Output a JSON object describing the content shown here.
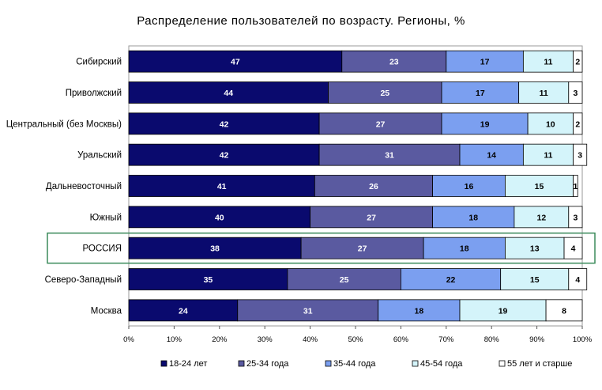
{
  "chart_data": {
    "type": "bar",
    "orientation": "horizontal",
    "stacked": true,
    "title": "Распределение пользователей по возрасту. Регионы, %",
    "categories": [
      "Сибирский",
      "Приволжский",
      "Центральный (без Москвы)",
      "Уральский",
      "Дальневосточный",
      "Южный",
      "РОССИЯ",
      "Северо-Западный",
      "Москва"
    ],
    "highlighted_category": "РОССИЯ",
    "series": [
      {
        "name": "18-24 лет",
        "color": "#0a0a6e",
        "values": [
          47,
          44,
          42,
          42,
          41,
          40,
          38,
          35,
          24
        ]
      },
      {
        "name": "25-34 года",
        "color": "#5a5aa0",
        "values": [
          23,
          25,
          27,
          31,
          26,
          27,
          27,
          25,
          31
        ]
      },
      {
        "name": "35-44 года",
        "color": "#7b9ff0",
        "values": [
          17,
          17,
          19,
          14,
          16,
          18,
          18,
          22,
          18
        ]
      },
      {
        "name": "45-54 года",
        "color": "#d4f4fa",
        "values": [
          11,
          11,
          10,
          11,
          15,
          12,
          13,
          15,
          19
        ]
      },
      {
        "name": "55 лет  и старше",
        "color": "#ffffff",
        "values": [
          2,
          3,
          2,
          3,
          1,
          3,
          4,
          4,
          8
        ]
      }
    ],
    "xlim": [
      0,
      100
    ],
    "x_ticks": [
      "0%",
      "10%",
      "20%",
      "30%",
      "40%",
      "50%",
      "60%",
      "70%",
      "80%",
      "90%",
      "100%"
    ],
    "legend_position": "bottom",
    "highlight_color": "#3a8a5a"
  }
}
